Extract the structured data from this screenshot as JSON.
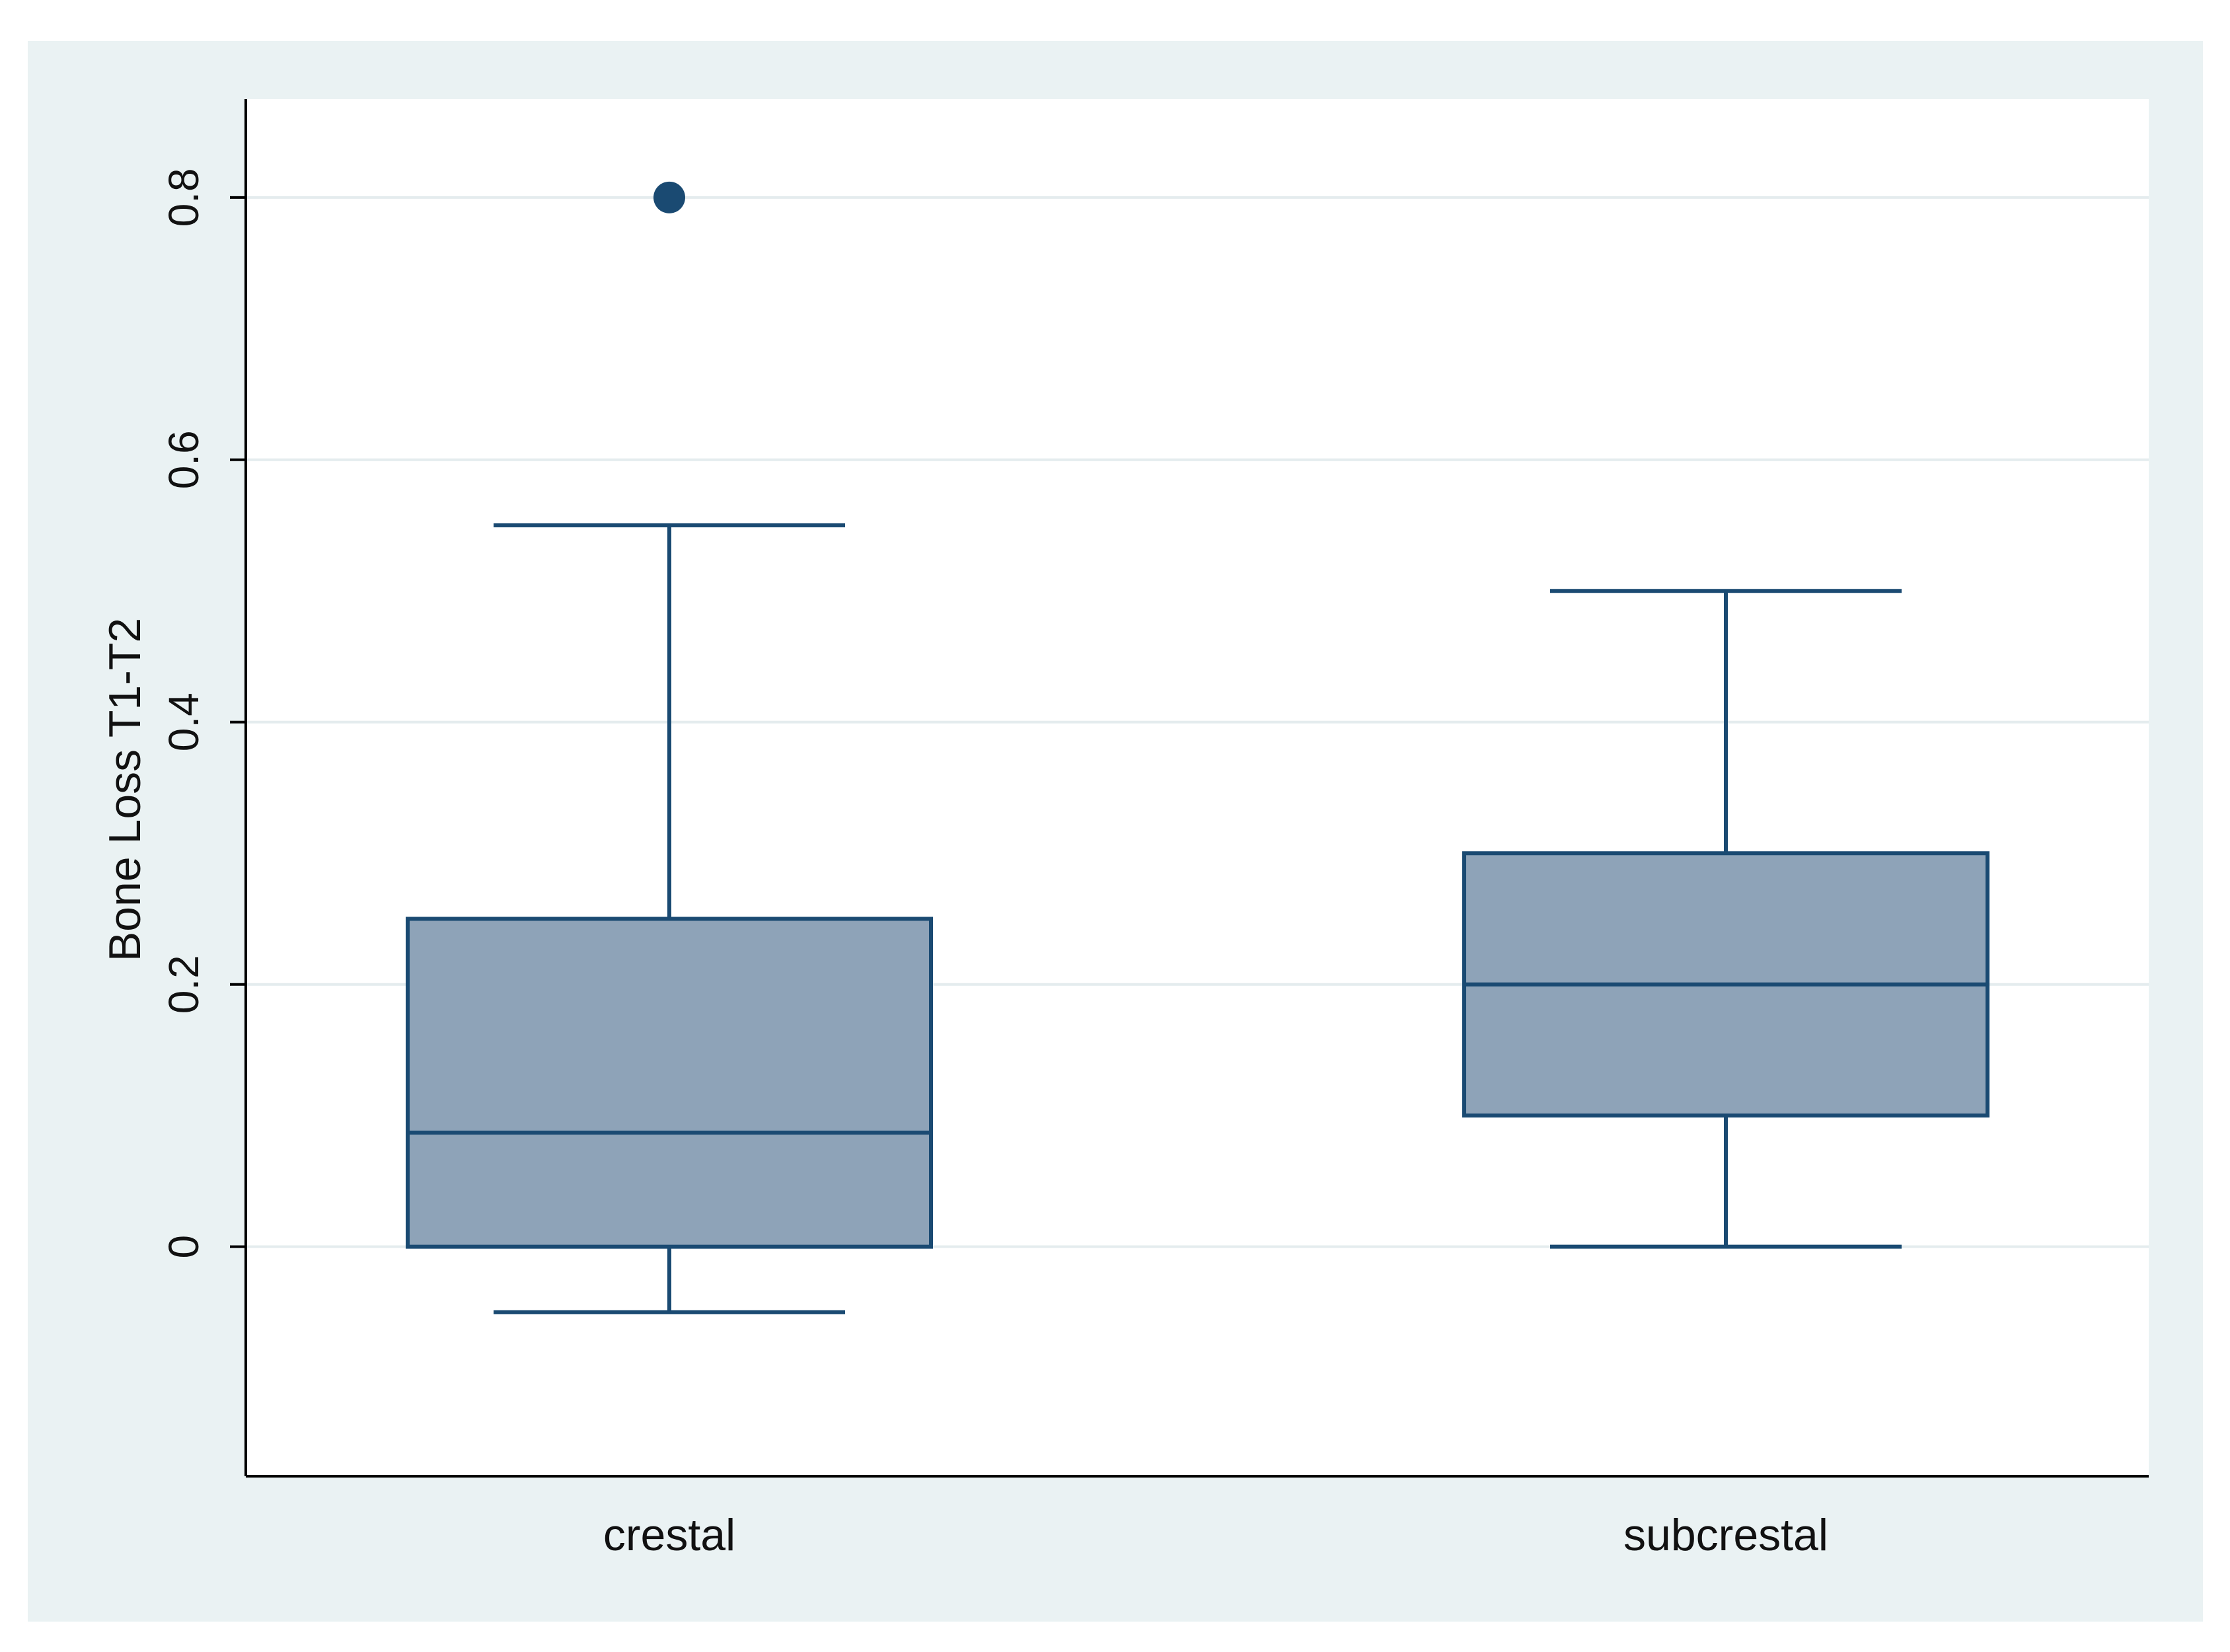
{
  "chart_data": {
    "type": "box",
    "title": "",
    "xlabel": "",
    "ylabel": "Bone Loss T1-T2",
    "ylim": [
      -0.175,
      0.875
    ],
    "yticks": [
      0,
      0.2,
      0.4,
      0.6,
      0.8
    ],
    "ytick_labels": [
      "0",
      "0.2",
      "0.4",
      "0.6",
      "0.8"
    ],
    "grid": true,
    "legend": "none",
    "colors": {
      "outer_background": "#eaf2f3",
      "plot_background": "#ffffff",
      "box_fill": "#8ea3b8",
      "box_stroke": "#1a4a72",
      "grid": "#e4ecee",
      "axis": "#000000"
    },
    "categories": [
      "crestal",
      "subcrestal"
    ],
    "boxes": [
      {
        "category": "crestal",
        "whisker_low": -0.05,
        "q1": 0.0,
        "median": 0.087,
        "q3": 0.25,
        "whisker_high": 0.55,
        "outliers": [
          0.8
        ]
      },
      {
        "category": "subcrestal",
        "whisker_low": 0.0,
        "q1": 0.1,
        "median": 0.2,
        "q3": 0.3,
        "whisker_high": 0.5,
        "outliers": []
      }
    ]
  }
}
